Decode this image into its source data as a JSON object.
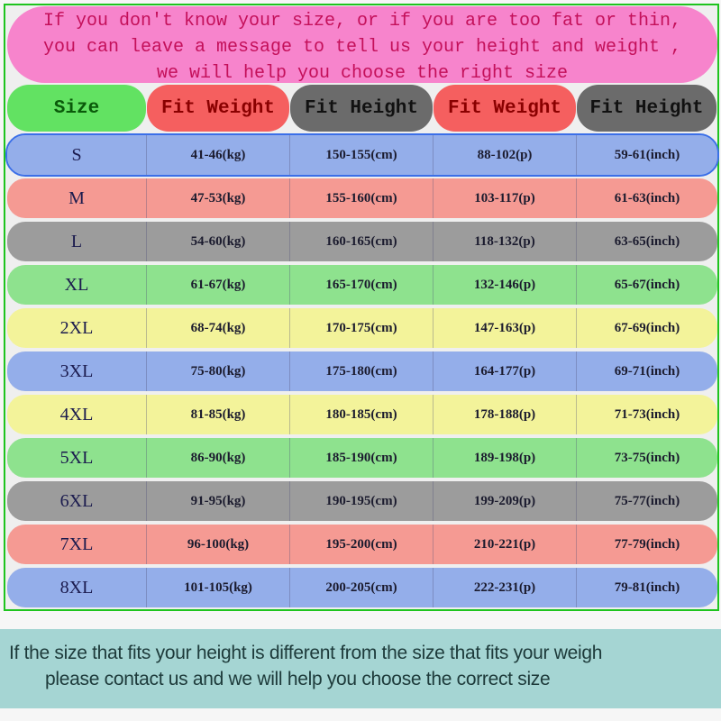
{
  "banner": {
    "lines": [
      "If you don't know your size, or if you are too fat or thin,",
      "you can leave a message to tell us your height and weight ,",
      "we will help you choose the right size"
    ],
    "color": "#f784cc"
  },
  "headers": [
    {
      "label": "Size",
      "bg": "#62e262",
      "fg": "#0a5a0a"
    },
    {
      "label": "Fit Weight",
      "bg": "#f55f5f",
      "fg": "#8a0000"
    },
    {
      "label": "Fit Height",
      "bg": "#6b6b6b",
      "fg": "#111111"
    },
    {
      "label": "Fit Weight",
      "bg": "#f55f5f",
      "fg": "#8a0000"
    },
    {
      "label": "Fit Height",
      "bg": "#6b6b6b",
      "fg": "#111111"
    }
  ],
  "rows": [
    {
      "size": "S",
      "kg": "41-46(kg)",
      "cm": "150-155(cm)",
      "p": "88-102(p)",
      "inch": "59-61(inch)",
      "bg": "#94aeea"
    },
    {
      "size": "M",
      "kg": "47-53(kg)",
      "cm": "155-160(cm)",
      "p": "103-117(p)",
      "inch": "61-63(inch)",
      "bg": "#f59a93"
    },
    {
      "size": "L",
      "kg": "54-60(kg)",
      "cm": "160-165(cm)",
      "p": "118-132(p)",
      "inch": "63-65(inch)",
      "bg": "#9c9c9c"
    },
    {
      "size": "XL",
      "kg": "61-67(kg)",
      "cm": "165-170(cm)",
      "p": "132-146(p)",
      "inch": "65-67(inch)",
      "bg": "#8ee28e"
    },
    {
      "size": "2XL",
      "kg": "68-74(kg)",
      "cm": "170-175(cm)",
      "p": "147-163(p)",
      "inch": "67-69(inch)",
      "bg": "#f3f39a"
    },
    {
      "size": "3XL",
      "kg": "75-80(kg)",
      "cm": "175-180(cm)",
      "p": "164-177(p)",
      "inch": "69-71(inch)",
      "bg": "#94aeea"
    },
    {
      "size": "4XL",
      "kg": "81-85(kg)",
      "cm": "180-185(cm)",
      "p": "178-188(p)",
      "inch": "71-73(inch)",
      "bg": "#f3f39a"
    },
    {
      "size": "5XL",
      "kg": "86-90(kg)",
      "cm": "185-190(cm)",
      "p": "189-198(p)",
      "inch": "73-75(inch)",
      "bg": "#8ee28e"
    },
    {
      "size": "6XL",
      "kg": "91-95(kg)",
      "cm": "190-195(cm)",
      "p": "199-209(p)",
      "inch": "75-77(inch)",
      "bg": "#9c9c9c"
    },
    {
      "size": "7XL",
      "kg": "96-100(kg)",
      "cm": "195-200(cm)",
      "p": "210-221(p)",
      "inch": "77-79(inch)",
      "bg": "#f59a93"
    },
    {
      "size": "8XL",
      "kg": "101-105(kg)",
      "cm": "200-205(cm)",
      "p": "222-231(p)",
      "inch": "79-81(inch)",
      "bg": "#94aeea"
    }
  ],
  "note": {
    "line1": "If the size that fits your height is different from the size that fits your weigh",
    "line2": "please contact us and we will help you choose the correct size",
    "color": "#a5d5d3"
  }
}
